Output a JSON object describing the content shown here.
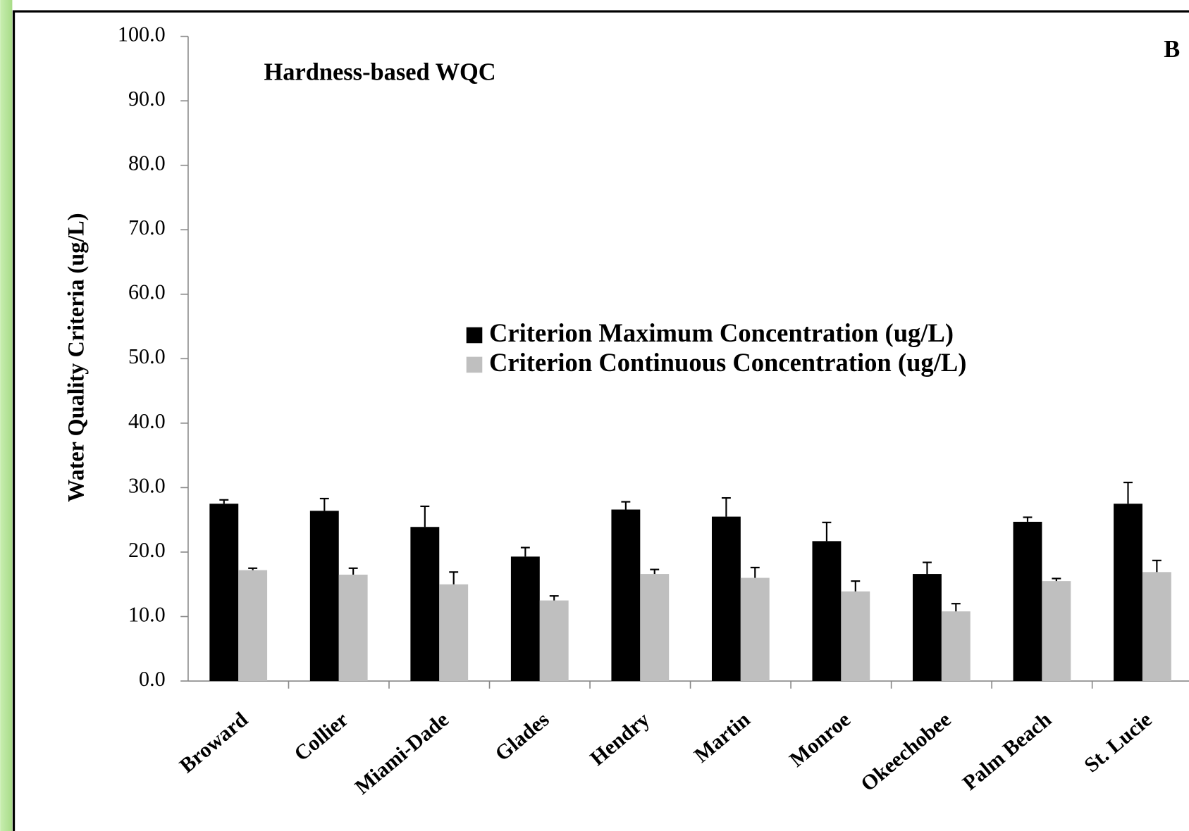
{
  "chart_data": {
    "type": "bar",
    "title": "Hardness-based WQC",
    "panel_label": "B",
    "y_label": "Water Quality Criteria (ug/L)",
    "categories": [
      "Broward",
      "Collier",
      "Miami-Dade",
      "Glades",
      "Hendry",
      "Martin",
      "Monroe",
      "Okeechobee",
      "Palm Beach",
      "St. Lucie"
    ],
    "series": [
      {
        "name": "Criterion Maximum Concentration (ug/L)",
        "color": "#000000",
        "values": [
          27.5,
          26.4,
          23.9,
          19.3,
          26.6,
          25.5,
          21.7,
          16.6,
          24.7,
          27.5
        ],
        "errors": [
          0.6,
          1.9,
          3.2,
          1.4,
          1.2,
          2.9,
          2.9,
          1.8,
          0.7,
          3.3
        ]
      },
      {
        "name": "Criterion Continuous Concentration (ug/L)",
        "color": "#bfbfbf",
        "values": [
          17.2,
          16.5,
          15.0,
          12.5,
          16.6,
          16.0,
          13.9,
          10.8,
          15.5,
          16.9
        ],
        "errors": [
          0.3,
          1.0,
          1.9,
          0.7,
          0.7,
          1.6,
          1.6,
          1.2,
          0.4,
          1.8
        ]
      }
    ],
    "ylim": [
      0,
      100
    ],
    "yticks": [
      {
        "value": 0,
        "label": "0.0"
      },
      {
        "value": 10,
        "label": "10.0"
      },
      {
        "value": 20,
        "label": "20.0"
      },
      {
        "value": 30,
        "label": "30.0"
      },
      {
        "value": 40,
        "label": "40.0"
      },
      {
        "value": 50,
        "label": "50.0"
      },
      {
        "value": 60,
        "label": "60.0"
      },
      {
        "value": 70,
        "label": "70.0"
      },
      {
        "value": 80,
        "label": "80.0"
      },
      {
        "value": 90,
        "label": "90.0"
      },
      {
        "value": 100,
        "label": "100.0"
      }
    ],
    "grid": false
  }
}
